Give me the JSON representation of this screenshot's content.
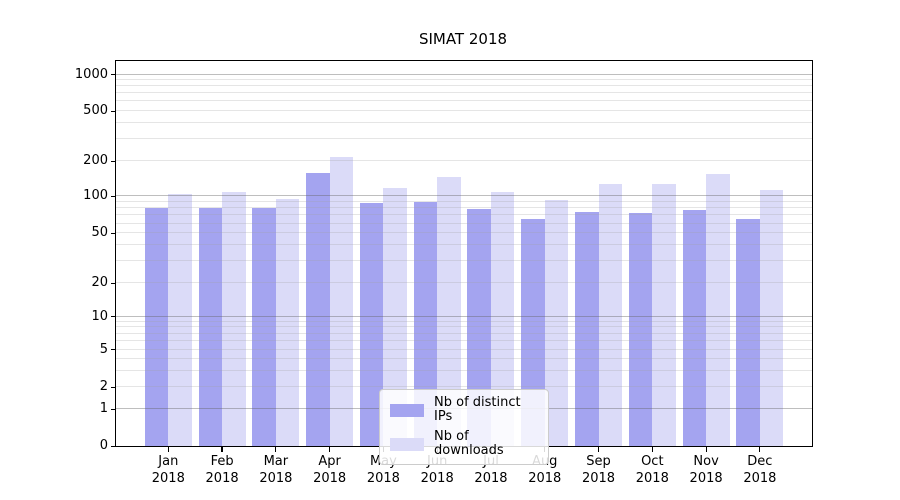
{
  "chart_data": {
    "type": "bar",
    "title": "SIMAT 2018",
    "categories": [
      "Jan",
      "Feb",
      "Mar",
      "Apr",
      "May",
      "Jun",
      "Jul",
      "Aug",
      "Sep",
      "Oct",
      "Nov",
      "Dec"
    ],
    "category_year": "2018",
    "series": [
      {
        "name": "Nb of distinct IPs",
        "color": "#a4a4f0",
        "values": [
          80,
          80,
          80,
          157,
          89,
          91,
          79,
          65,
          74,
          73,
          77,
          65
        ]
      },
      {
        "name": "Nb of downloads",
        "color": "#dbdbf8",
        "values": [
          105,
          110,
          95,
          216,
          117,
          147,
          110,
          93,
          128,
          128,
          155,
          113
        ]
      }
    ],
    "yticks": [
      0,
      1,
      2,
      5,
      10,
      20,
      50,
      100,
      200,
      500,
      1000
    ],
    "yscale": "asinh",
    "ylim": [
      0,
      1300
    ],
    "grid": true,
    "legend": {
      "position": "lower center"
    },
    "colors": {
      "axis": "#000000",
      "major_grid": "#bdbdbd",
      "minor_grid": "#e4e4e4"
    }
  }
}
